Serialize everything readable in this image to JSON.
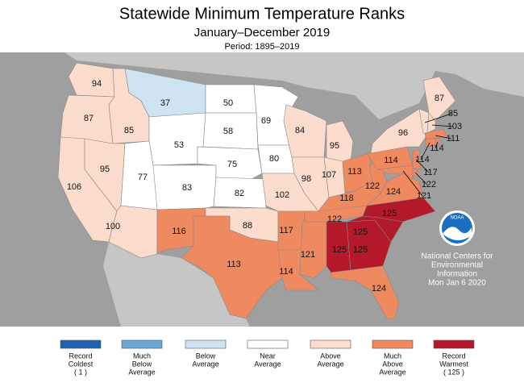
{
  "header": {
    "title": "Statewide Minimum Temperature Ranks",
    "subtitle": "January–December 2019",
    "period": "Period: 1895–2019"
  },
  "regions": [
    {
      "rank": 94,
      "category": 4
    },
    {
      "rank": 87,
      "category": 4
    },
    {
      "rank": 106,
      "category": 4
    },
    {
      "rank": 85,
      "category": 4
    },
    {
      "rank": 95,
      "category": 4
    },
    {
      "rank": 37,
      "category": 2
    },
    {
      "rank": 53,
      "category": 3
    },
    {
      "rank": 77,
      "category": 3
    },
    {
      "rank": 83,
      "category": 3
    },
    {
      "rank": 100,
      "category": 4
    },
    {
      "rank": 116,
      "category": 5
    },
    {
      "rank": 50,
      "category": 3
    },
    {
      "rank": 58,
      "category": 3
    },
    {
      "rank": 75,
      "category": 3
    },
    {
      "rank": 82,
      "category": 3
    },
    {
      "rank": 88,
      "category": 4
    },
    {
      "rank": 113,
      "category": 5
    },
    {
      "rank": 69,
      "category": 3
    },
    {
      "rank": 80,
      "category": 3
    },
    {
      "rank": 102,
      "category": 4
    },
    {
      "rank": 117,
      "category": 5
    },
    {
      "rank": 114,
      "category": 5
    },
    {
      "rank": 84,
      "category": 4
    },
    {
      "rank": 98,
      "category": 4
    },
    {
      "rank": 121,
      "category": 5
    },
    {
      "rank": 95,
      "category": 4
    },
    {
      "rank": 107,
      "category": 4
    },
    {
      "rank": 113,
      "category": 5
    },
    {
      "rank": 118,
      "category": 5
    },
    {
      "rank": 122,
      "category": 5
    },
    {
      "rank": 125,
      "category": 6
    },
    {
      "rank": 125,
      "category": 6
    },
    {
      "rank": 124,
      "category": 5
    },
    {
      "rank": 125,
      "category": 6
    },
    {
      "rank": 125,
      "category": 6
    },
    {
      "rank": 124,
      "category": 5
    },
    {
      "rank": 122,
      "category": 5
    },
    {
      "rank": 114,
      "category": 5
    },
    {
      "rank": 96,
      "category": 4
    },
    {
      "rank": 87,
      "category": 4
    },
    {
      "rank": 85,
      "category": 4
    },
    {
      "rank": 103,
      "category": 4
    },
    {
      "rank": 111,
      "category": 5
    },
    {
      "rank": 114,
      "category": 5
    },
    {
      "rank": 114,
      "category": 5
    },
    {
      "rank": 117,
      "category": 5
    },
    {
      "rank": 122,
      "category": 5
    },
    {
      "rank": 121,
      "category": 5
    }
  ],
  "legend": [
    {
      "lines": [
        "Record",
        "Coldest",
        "( 1 )"
      ],
      "color": "#1f63ad"
    },
    {
      "lines": [
        "Much",
        "Below",
        "Average"
      ],
      "color": "#6aa6d6"
    },
    {
      "lines": [
        "Below",
        "Average"
      ],
      "color": "#cfe4f2"
    },
    {
      "lines": [
        "Near",
        "Average"
      ],
      "color": "#ffffff"
    },
    {
      "lines": [
        "Above",
        "Average"
      ],
      "color": "#fcdccc"
    },
    {
      "lines": [
        "Much",
        "Above",
        "Average"
      ],
      "color": "#ef8a60"
    },
    {
      "lines": [
        "Record",
        "Warmest",
        "( 125 )"
      ],
      "color": "#b3192b"
    }
  ],
  "credit": {
    "logo": "NOAA",
    "lines": [
      "National Centers for",
      "Environmental",
      "Information",
      "Mon Jan  6 2020"
    ]
  }
}
